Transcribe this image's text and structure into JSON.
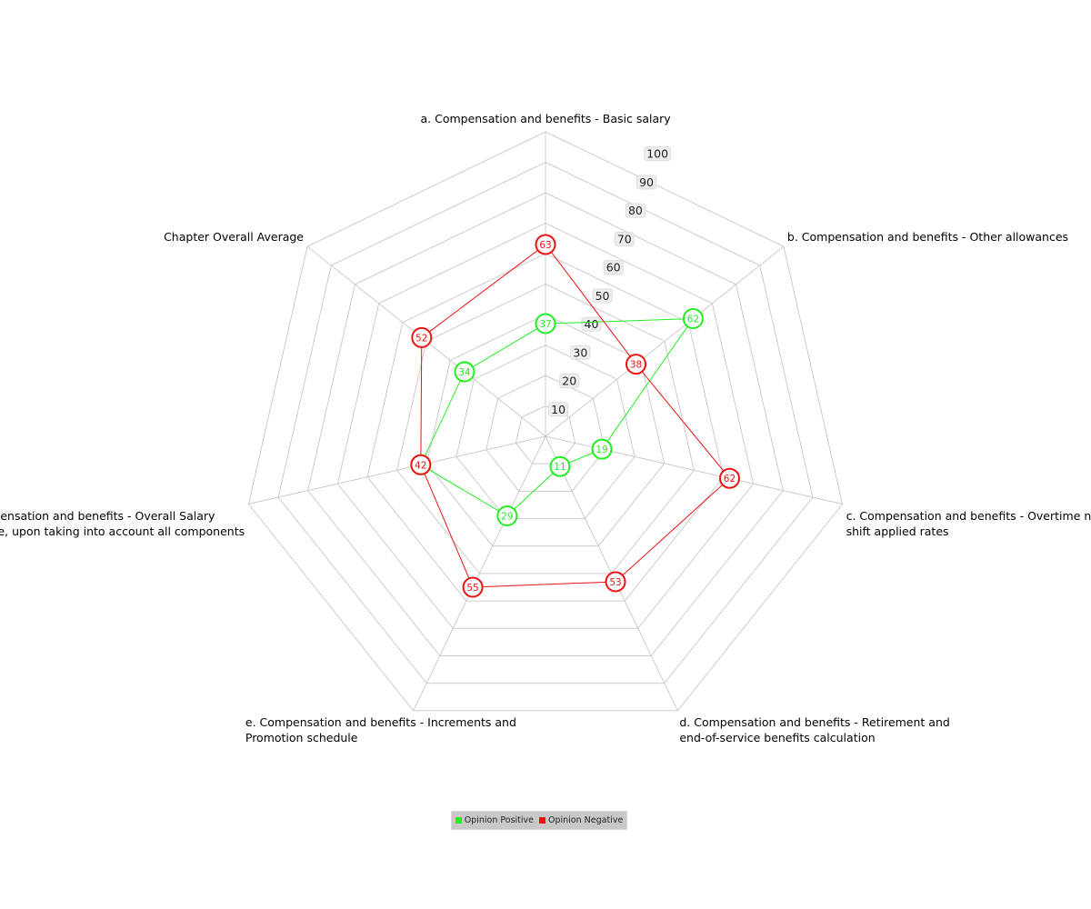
{
  "chart_data": {
    "type": "radar",
    "categories": [
      "a. Compensation and benefits - Basic salary",
      "b. Compensation and benefits - Other allowances",
      "c. Compensation and benefits - Overtime  night shift applied rates",
      "d. Compensation and benefits - Retirement and end-of-service benefits calculation",
      "e. Compensation and benefits - Increments and Promotion schedule",
      "f. Compensation and benefits - Overall Salary package, upon taking into account all components",
      "Chapter Overall Average"
    ],
    "category_lines": [
      [
        "a. Compensation and benefits - Basic salary"
      ],
      [
        "b. Compensation and benefits - Other allowances"
      ],
      [
        "c. Compensation and benefits - Overtime  night",
        "shift applied rates"
      ],
      [
        "d. Compensation and benefits - Retirement and",
        "end-of-service benefits calculation"
      ],
      [
        "e. Compensation and benefits - Increments and",
        "Promotion schedule"
      ],
      [
        "f. Compensation and benefits - Overall Salary",
        "package, upon taking into account all components"
      ],
      [
        "Chapter Overall Average"
      ]
    ],
    "series": [
      {
        "name": "Opinion Positive",
        "color": "#22ee22",
        "values": [
          37,
          62,
          19,
          11,
          29,
          42,
          34
        ]
      },
      {
        "name": "Opinion Negative",
        "color": "#ee1111",
        "values": [
          63,
          38,
          62,
          53,
          55,
          42,
          52
        ]
      }
    ],
    "scale": {
      "min": 0,
      "max": 100,
      "ticks": [
        10,
        20,
        30,
        40,
        50,
        60,
        70,
        80,
        90,
        100
      ]
    },
    "grid": true,
    "legend_position": "bottom"
  }
}
